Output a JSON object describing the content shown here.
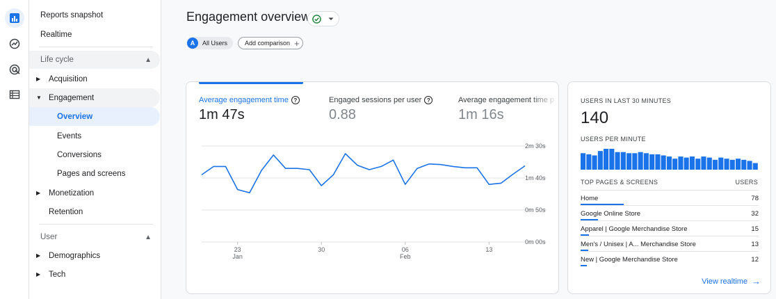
{
  "nav": {
    "top_items": [
      {
        "label": "Reports snapshot"
      },
      {
        "label": "Realtime"
      }
    ],
    "lifecycle": {
      "header": "Life cycle",
      "acquisition": "Acquisition",
      "engagement": "Engagement",
      "engagement_children": [
        "Overview",
        "Events",
        "Conversions",
        "Pages and screens"
      ],
      "monetization": "Monetization",
      "retention": "Retention"
    },
    "user": {
      "header": "User",
      "demographics": "Demographics",
      "tech": "Tech"
    }
  },
  "header": {
    "title": "Engagement overview",
    "comparison_badge": "A",
    "comparison_label": "All Users",
    "add_comparison": "Add comparison"
  },
  "metrics": [
    {
      "label": "Average engagement time",
      "value": "1m 47s"
    },
    {
      "label": "Engaged sessions per user",
      "value": "0.88"
    },
    {
      "label": "Average engagement time p",
      "value": "1m 16s"
    }
  ],
  "chart_data": {
    "type": "line",
    "y_tick_labels": [
      "2m 30s",
      "1m 40s",
      "0m 50s",
      "0m 00s"
    ],
    "y_tick_seconds": [
      150,
      100,
      50,
      0
    ],
    "ylim": [
      0,
      150
    ],
    "x_tick_labels": [
      {
        "day": "23",
        "month": "Jan",
        "index": 3
      },
      {
        "day": "30",
        "month": "",
        "index": 10
      },
      {
        "day": "06",
        "month": "Feb",
        "index": 17
      },
      {
        "day": "13",
        "month": "",
        "index": 24
      }
    ],
    "grid": true,
    "series": [
      {
        "values": [
          105,
          118,
          118,
          82,
          77,
          112,
          136,
          115,
          115,
          113,
          88,
          105,
          138,
          120,
          113,
          118,
          128,
          90,
          115,
          122,
          121,
          118,
          116,
          116,
          90,
          92,
          106,
          119
        ],
        "color": "#1a73e8"
      }
    ]
  },
  "realtime": {
    "title": "USERS IN LAST 30 MINUTES",
    "value": "140",
    "per_minute_label": "USERS PER MINUTE",
    "per_minute_values": [
      15,
      14,
      13,
      17,
      19,
      19,
      16,
      16,
      15,
      15,
      16,
      15,
      14,
      14,
      13,
      12,
      10,
      12,
      11,
      12,
      10,
      12,
      11,
      9,
      11,
      10,
      9,
      10,
      9,
      8,
      6
    ],
    "top_pages_header": "TOP PAGES & SCREENS",
    "users_header": "USERS",
    "top_pages": [
      {
        "name": "Home",
        "users": "78",
        "share": 1.0
      },
      {
        "name": "Google Online Store",
        "users": "32",
        "share": 0.41
      },
      {
        "name": "Apparel | Google Merchandise Store",
        "users": "15",
        "share": 0.19
      },
      {
        "name": "Men's / Unisex | A... Merchandise Store",
        "users": "13",
        "share": 0.17
      },
      {
        "name": "New | Google Merchandise Store",
        "users": "12",
        "share": 0.15
      }
    ],
    "view_link": "View realtime"
  },
  "colors": {
    "accent": "#1a73e8",
    "selected_bg": "#e8f0fe",
    "status_ok": "#188038"
  },
  "icons": [
    "bar-chart-icon",
    "explore-icon",
    "target-icon",
    "table-icon",
    "check-circle-icon",
    "dropdown-icon",
    "plus-icon",
    "help-icon",
    "arrow-right-icon"
  ]
}
